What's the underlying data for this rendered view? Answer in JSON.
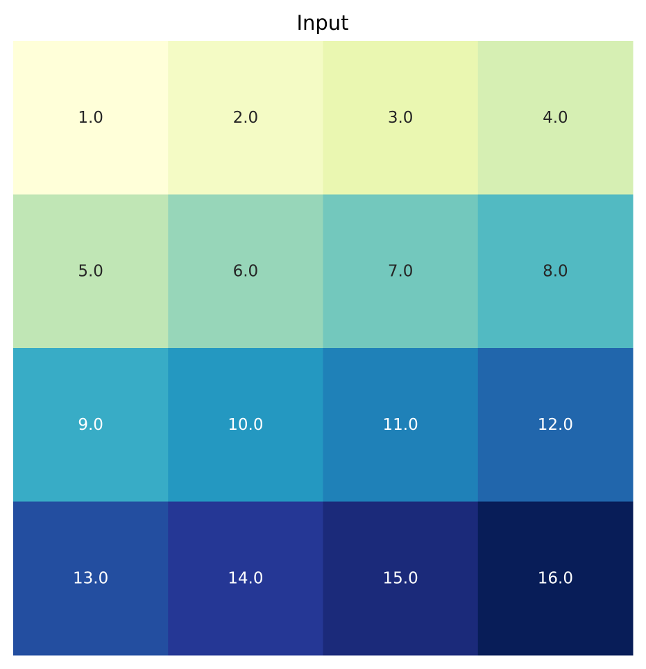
{
  "chart_data": {
    "type": "heatmap",
    "title": "Input",
    "rows": 4,
    "cols": 4,
    "values": [
      [
        1,
        2,
        3,
        4
      ],
      [
        5,
        6,
        7,
        8
      ],
      [
        9,
        10,
        11,
        12
      ],
      [
        13,
        14,
        15,
        16
      ]
    ],
    "labels": [
      [
        "1.0",
        "2.0",
        "3.0",
        "4.0"
      ],
      [
        "5.0",
        "6.0",
        "7.0",
        "8.0"
      ],
      [
        "9.0",
        "10.0",
        "11.0",
        "12.0"
      ],
      [
        "13.0",
        "14.0",
        "15.0",
        "16.0"
      ]
    ],
    "colors": [
      [
        "#ffffd9",
        "#f4fbc5",
        "#eaf7b1",
        "#d6efb3"
      ],
      [
        "#c0e6b5",
        "#97d6b9",
        "#73c8bd",
        "#52bac2"
      ],
      [
        "#38acc6",
        "#2498c1",
        "#1f81b8",
        "#2166ac"
      ],
      [
        "#234ea0",
        "#253795",
        "#1b2a7a",
        "#081d58"
      ]
    ],
    "label_colors": [
      [
        "#262626",
        "#262626",
        "#262626",
        "#262626"
      ],
      [
        "#262626",
        "#262626",
        "#262626",
        "#262626"
      ],
      [
        "#ffffff",
        "#ffffff",
        "#ffffff",
        "#ffffff"
      ],
      [
        "#ffffff",
        "#ffffff",
        "#ffffff",
        "#ffffff"
      ]
    ],
    "colormap": "YlGnBu",
    "grid": false,
    "axes_visible": false
  }
}
